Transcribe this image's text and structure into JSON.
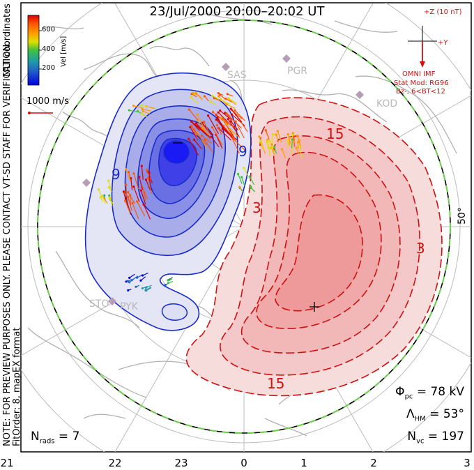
{
  "title": "23/Jul/2000 20:00–20:02 UT",
  "colorbar": {
    "label": "Vel [m/s]",
    "ticks": [
      "600",
      "400",
      "200"
    ],
    "colors": [
      "#0000dd",
      "#2060c8",
      "#20a0a0",
      "#40c040",
      "#e0e000",
      "#ff9900",
      "#ff5500",
      "#dd0000"
    ]
  },
  "mlt_label": "MLT coordinates",
  "scale_vector_label": "1000 m/s",
  "notice": "NOTE: FOR PREVIEW PURPOSES ONLY. PLEASE CONTACT VT-SD STAFF FOR VERIFICATION.",
  "fit_info": "FitOrder: 8, mapEX format",
  "imf": {
    "axis_z": "+Z (10 nT)",
    "axis_y": "+Y",
    "source": "OMNI IMF",
    "model": "Stat Mod: RG96",
    "conditions": "Bz-, 6<BT<12"
  },
  "stations": [
    "SAS",
    "PGR",
    "KOD",
    "STO",
    "PYK"
  ],
  "latitude_label": "50°",
  "contour_labels": [
    "9",
    "3",
    "9",
    "15",
    "3",
    "15"
  ],
  "stats": {
    "phi_pc": "= 78 kV",
    "lambda_hm": "= 53°",
    "n_vc": "= 197",
    "n_rads": "= 7"
  },
  "mlt_ticks": [
    "21",
    "22",
    "23",
    "0",
    "1",
    "2",
    "3"
  ],
  "colors": {
    "negative": "#1a2bcc",
    "positive": "#d01010",
    "boundary": "#6bd04a"
  }
}
